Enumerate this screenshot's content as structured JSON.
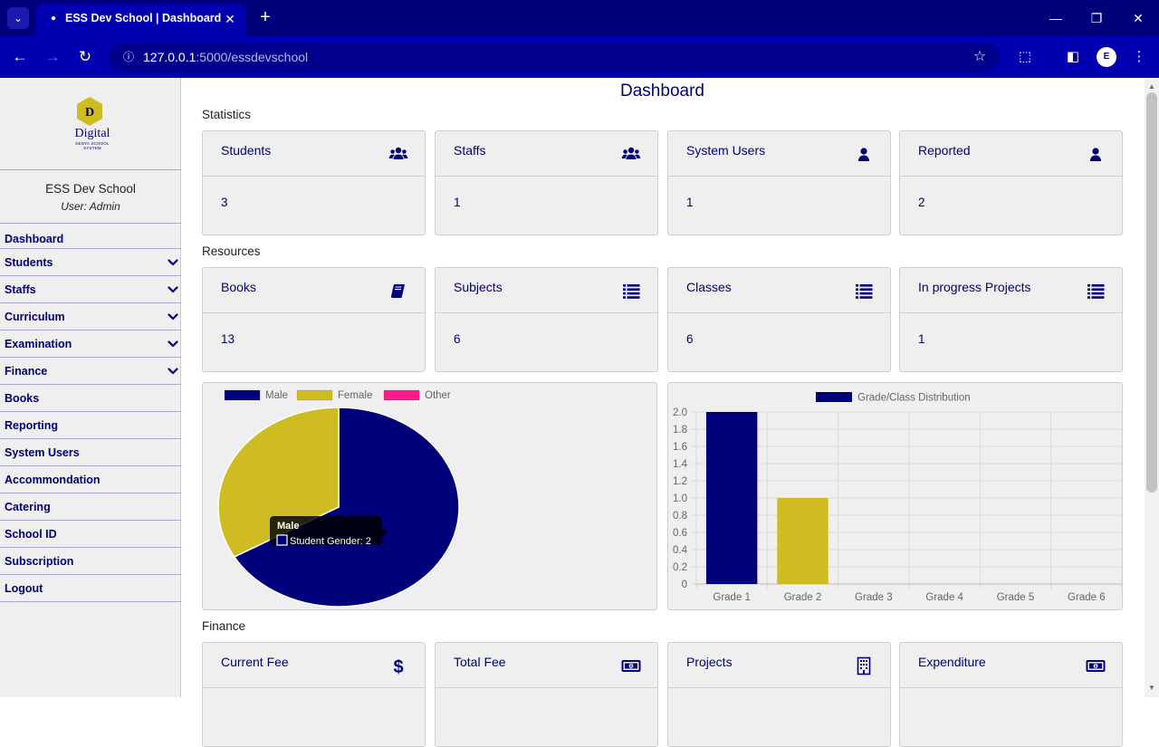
{
  "browser": {
    "tab_title": "ESS Dev School | Dashboard",
    "url_host": "127.0.0.1",
    "url_rest": ":5000/essdevschool"
  },
  "sidebar": {
    "logo_text": "Digital",
    "logo_letter": "D",
    "logo_tagline": "KENYA SCHOOL SYSTEM",
    "school_name": "ESS Dev School",
    "user_line": "User: Admin",
    "items": [
      {
        "label": "Dashboard",
        "has_dropdown": false
      },
      {
        "label": "Students",
        "has_dropdown": true
      },
      {
        "label": "Staffs",
        "has_dropdown": true
      },
      {
        "label": "Curriculum",
        "has_dropdown": true
      },
      {
        "label": "Examination",
        "has_dropdown": true
      },
      {
        "label": "Finance",
        "has_dropdown": true
      },
      {
        "label": "Books",
        "has_dropdown": false
      },
      {
        "label": "Reporting",
        "has_dropdown": false
      },
      {
        "label": "System Users",
        "has_dropdown": false
      },
      {
        "label": "Accommondation",
        "has_dropdown": false
      },
      {
        "label": "Catering",
        "has_dropdown": false
      },
      {
        "label": "School ID",
        "has_dropdown": false
      },
      {
        "label": "Subscription",
        "has_dropdown": false
      },
      {
        "label": "Logout",
        "has_dropdown": false
      }
    ]
  },
  "main": {
    "title": "Dashboard",
    "sections": {
      "statistics": "Statistics",
      "resources": "Resources",
      "finance": "Finance"
    },
    "statistics": [
      {
        "label": "Students",
        "value": "3",
        "icon": "users-icon"
      },
      {
        "label": "Staffs",
        "value": "1",
        "icon": "users-icon"
      },
      {
        "label": "System Users",
        "value": "1",
        "icon": "user-icon"
      },
      {
        "label": "Reported",
        "value": "2",
        "icon": "user-icon"
      }
    ],
    "resources": [
      {
        "label": "Books",
        "value": "13",
        "icon": "book-icon"
      },
      {
        "label": "Subjects",
        "value": "6",
        "icon": "list-icon"
      },
      {
        "label": "Classes",
        "value": "6",
        "icon": "list-icon"
      },
      {
        "label": "In progress Projects",
        "value": "1",
        "icon": "list-icon"
      }
    ],
    "finance": [
      {
        "label": "Current Fee",
        "icon": "dollar-icon"
      },
      {
        "label": "Total Fee",
        "icon": "money-icon"
      },
      {
        "label": "Projects",
        "icon": "building-icon"
      },
      {
        "label": "Expenditure",
        "icon": "money-icon"
      }
    ],
    "tooltip": {
      "title": "Male",
      "body": "Student Gender: 2"
    }
  },
  "colors": {
    "navy": "#00007a",
    "olive": "#cfbc22",
    "pink": "#ff1a8c"
  },
  "chart_data": [
    {
      "type": "pie",
      "categories": [
        "Male",
        "Female",
        "Other"
      ],
      "series": [
        {
          "name": "Student Gender",
          "values": [
            2,
            1,
            0
          ]
        }
      ],
      "colors": [
        "#00007a",
        "#cfbc22",
        "#ff1a8c"
      ],
      "legend": "top"
    },
    {
      "type": "bar",
      "categories": [
        "Grade 1",
        "Grade 2",
        "Grade 3",
        "Grade 4",
        "Grade 5",
        "Grade 6"
      ],
      "series": [
        {
          "name": "Grade/Class Distribution",
          "values": [
            2,
            1,
            0,
            0,
            0,
            0
          ]
        }
      ],
      "colors": [
        "#00007a",
        "#cfbc22",
        "#00007a",
        "#00007a",
        "#00007a",
        "#00007a"
      ],
      "ylim": [
        0,
        2
      ],
      "yticks": [
        "0",
        "0.2",
        "0.4",
        "0.6",
        "0.8",
        "1.0",
        "1.2",
        "1.4",
        "1.6",
        "1.8",
        "2.0"
      ],
      "grid": true,
      "legend": "top"
    }
  ]
}
